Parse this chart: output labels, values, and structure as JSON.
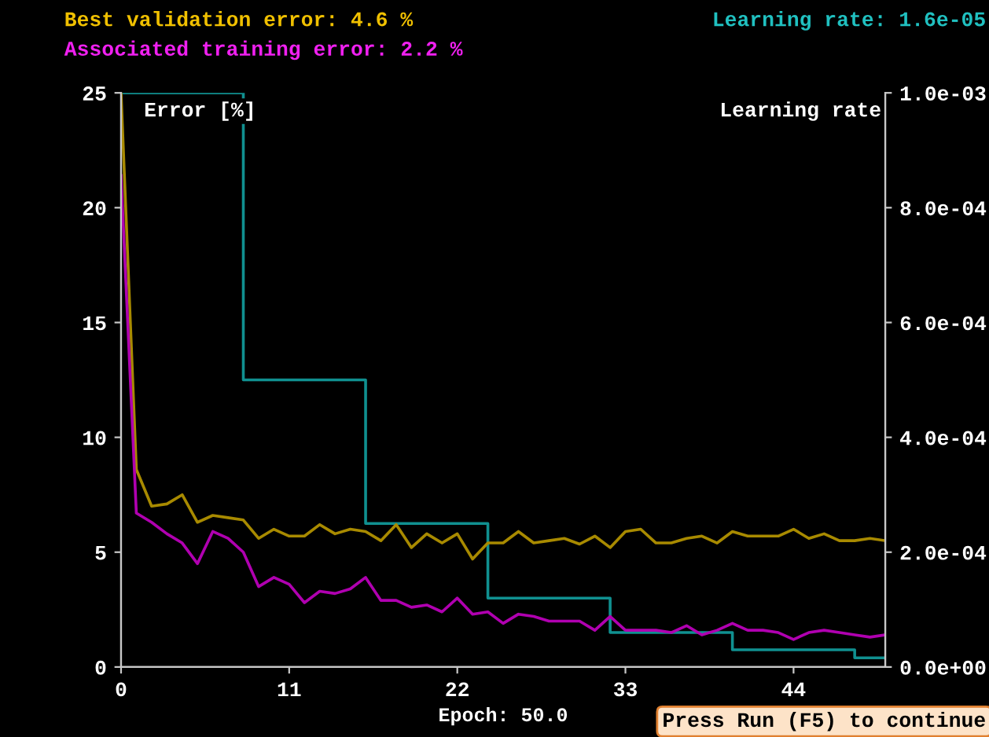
{
  "chart_data": {
    "type": "line",
    "title": "Best validation error: 4.6 %",
    "subtitle": "Associated training error: 2.2 %",
    "xlabel": "Epoch: 50.0",
    "ylabel": "Error [%]",
    "y2label": "Learning rate",
    "annotations": [
      "Learning rate: 1.6e-05",
      "Press Run (F5) to continue"
    ],
    "x": [
      0,
      1,
      2,
      3,
      4,
      5,
      6,
      7,
      8,
      9,
      10,
      11,
      12,
      13,
      14,
      15,
      16,
      17,
      18,
      19,
      20,
      21,
      22,
      23,
      24,
      25,
      26,
      27,
      28,
      29,
      30,
      31,
      32,
      33,
      34,
      35,
      36,
      37,
      38,
      39,
      40,
      41,
      42,
      43,
      44,
      45,
      46,
      47,
      48,
      49,
      50
    ],
    "series": [
      {
        "color": "#a88a00",
        "values": [
          25,
          8.6,
          7.0,
          7.1,
          7.5,
          6.3,
          6.6,
          6.5,
          6.4,
          5.6,
          6.0,
          5.7,
          5.7,
          6.2,
          5.8,
          6.0,
          5.9,
          5.5,
          6.2,
          5.2,
          5.8,
          5.4,
          5.8,
          4.7,
          5.4,
          5.4,
          5.9,
          5.4,
          5.5,
          5.6,
          5.35,
          5.7,
          5.2,
          5.9,
          6.0,
          5.4,
          5.4,
          5.6,
          5.7,
          5.4,
          5.9,
          5.7,
          5.7,
          5.7,
          6.0,
          5.6,
          5.8,
          5.5,
          5.5,
          5.6,
          5.5
        ]
      },
      {
        "color": "#b000b0",
        "values": [
          21.4,
          6.7,
          6.3,
          5.8,
          5.4,
          4.5,
          5.9,
          5.6,
          5.0,
          3.5,
          3.9,
          3.6,
          2.8,
          3.3,
          3.2,
          3.4,
          3.9,
          2.9,
          2.9,
          2.6,
          2.7,
          2.4,
          3.0,
          2.3,
          2.4,
          1.9,
          2.3,
          2.2,
          2.0,
          2.0,
          2.0,
          1.6,
          2.2,
          1.6,
          1.6,
          1.6,
          1.5,
          1.8,
          1.4,
          1.6,
          1.9,
          1.6,
          1.6,
          1.5,
          1.2,
          1.5,
          1.6,
          1.5,
          1.4,
          1.3,
          1.4
        ]
      },
      {
        "type": "step",
        "axis": "y2",
        "color": "#109090",
        "x": [
          0,
          8,
          16,
          24,
          32,
          40,
          48,
          50
        ],
        "values": [
          0.001,
          0.0005,
          0.00025,
          0.00012,
          6e-05,
          3e-05,
          1.6e-05,
          1.6e-05
        ]
      }
    ],
    "xlim": [
      0,
      50
    ],
    "xticks": [
      0,
      11,
      22,
      33,
      44
    ],
    "ylim": [
      0,
      25
    ],
    "yticks": [
      0,
      5,
      10,
      15,
      20,
      25
    ],
    "y2lim": [
      0,
      0.001
    ],
    "y2ticks": [
      {
        "value": 0,
        "label": "0.0e+00"
      },
      {
        "value": 0.0002,
        "label": "2.0e-04"
      },
      {
        "value": 0.0004,
        "label": "4.0e-04"
      },
      {
        "value": 0.0006,
        "label": "6.0e-04"
      },
      {
        "value": 0.0008,
        "label": "8.0e-04"
      },
      {
        "value": 0.001,
        "label": "1.0e-03"
      }
    ],
    "grid": false,
    "legend": false
  }
}
